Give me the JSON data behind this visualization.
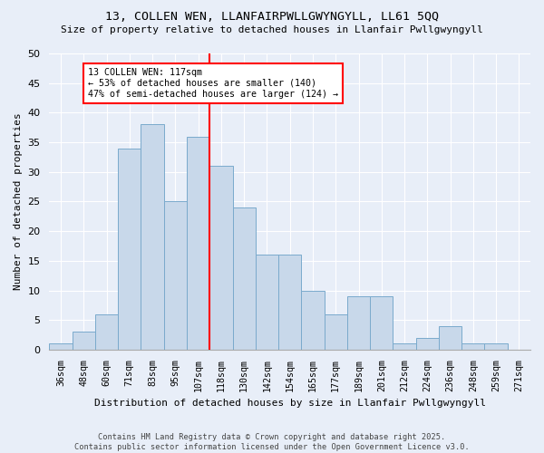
{
  "title1": "13, COLLEN WEN, LLANFAIRPWLLGWYNGYLL, LL61 5QQ",
  "title2": "Size of property relative to detached houses in Llanfair Pwllgwyngyll",
  "xlabel": "Distribution of detached houses by size in Llanfair Pwllgwyngyll",
  "ylabel": "Number of detached properties",
  "categories": [
    "36sqm",
    "48sqm",
    "60sqm",
    "71sqm",
    "83sqm",
    "95sqm",
    "107sqm",
    "118sqm",
    "130sqm",
    "142sqm",
    "154sqm",
    "165sqm",
    "177sqm",
    "189sqm",
    "201sqm",
    "212sqm",
    "224sqm",
    "236sqm",
    "248sqm",
    "259sqm",
    "271sqm"
  ],
  "values": [
    1,
    3,
    6,
    34,
    38,
    25,
    36,
    31,
    24,
    16,
    16,
    10,
    6,
    9,
    9,
    1,
    2,
    4,
    1,
    1,
    0
  ],
  "bar_color": "#c8d8ea",
  "bar_edge_color": "#7aaacc",
  "vline_color": "red",
  "annotation_text": "13 COLLEN WEN: 117sqm\n← 53% of detached houses are smaller (140)\n47% of semi-detached houses are larger (124) →",
  "annotation_box_color": "white",
  "annotation_box_edge": "red",
  "background_color": "#e8eef8",
  "plot_bg_color": "#e8eef8",
  "footer": "Contains HM Land Registry data © Crown copyright and database right 2025.\nContains public sector information licensed under the Open Government Licence v3.0.",
  "ylim": [
    0,
    50
  ],
  "yticks": [
    0,
    5,
    10,
    15,
    20,
    25,
    30,
    35,
    40,
    45,
    50
  ],
  "vline_pos": 6.5
}
